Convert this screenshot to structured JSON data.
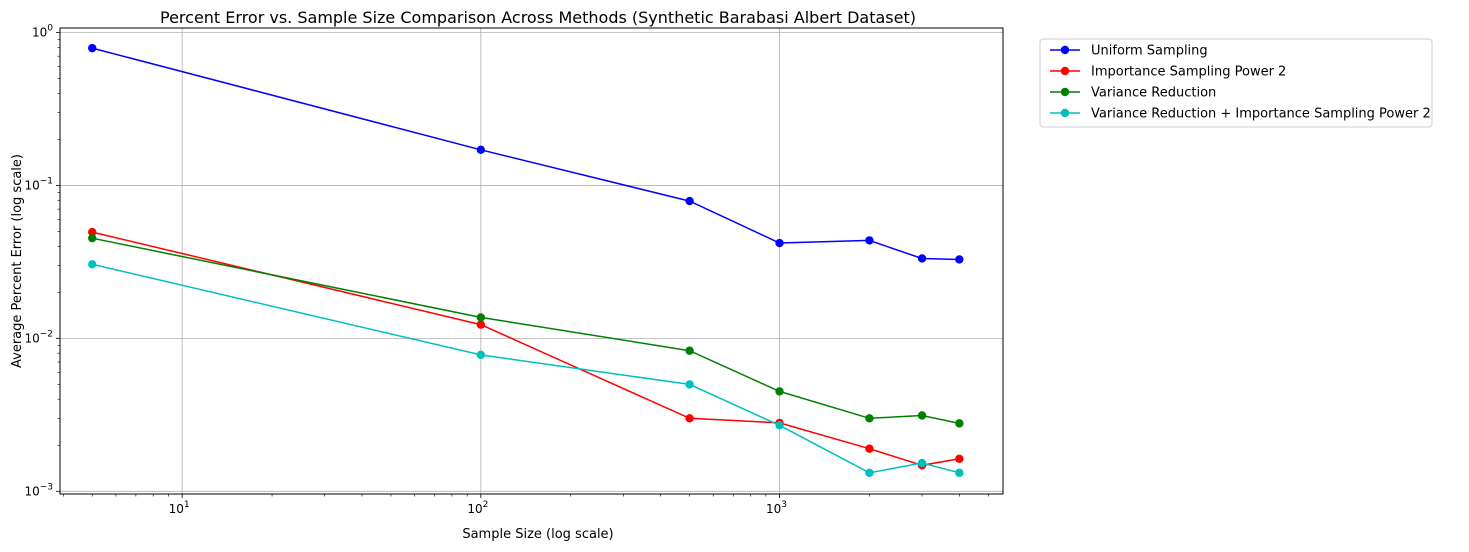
{
  "chart_data": {
    "type": "line",
    "title": "Percent Error vs. Sample Size Comparison Across Methods (Synthetic Barabasi Albert Dataset)",
    "xlabel": "Sample Size (log scale)",
    "ylabel": "Average Percent Error (log scale)",
    "xscale": "log",
    "yscale": "log",
    "xlim": [
      3.9,
      5600
    ],
    "ylim": [
      0.00096,
      1.07
    ],
    "grid": true,
    "legend_position": "outside-top-right",
    "x_ticks": [
      {
        "base": "10",
        "exp": "1",
        "value": 10
      },
      {
        "base": "10",
        "exp": "2",
        "value": 100
      },
      {
        "base": "10",
        "exp": "3",
        "value": 1000
      }
    ],
    "y_ticks": [
      {
        "base": "10",
        "exp": "0",
        "value": 1
      },
      {
        "base": "10",
        "exp": "−1",
        "value": 0.1
      },
      {
        "base": "10",
        "exp": "−2",
        "value": 0.01
      },
      {
        "base": "10",
        "exp": "−3",
        "value": 0.001
      }
    ],
    "x": [
      5,
      100,
      500,
      1000,
      2000,
      3000,
      4000
    ],
    "series": [
      {
        "name": "Uniform Sampling",
        "color": "#0000ff",
        "values": [
          0.79,
          0.171,
          0.079,
          0.042,
          0.0437,
          0.0333,
          0.0328
        ]
      },
      {
        "name": "Importance Sampling Power 2",
        "color": "#ff0000",
        "values": [
          0.0495,
          0.0123,
          0.003,
          0.0028,
          0.0019,
          0.00148,
          0.00163
        ]
      },
      {
        "name": "Variance Reduction",
        "color": "#008000",
        "values": [
          0.0452,
          0.0137,
          0.0083,
          0.0045,
          0.003,
          0.00313,
          0.00278
        ]
      },
      {
        "name": "Variance Reduction + Importance Sampling Power 2",
        "color": "#00bfbf",
        "values": [
          0.0305,
          0.0078,
          0.005,
          0.0027,
          0.00132,
          0.00153,
          0.00132
        ]
      }
    ]
  }
}
